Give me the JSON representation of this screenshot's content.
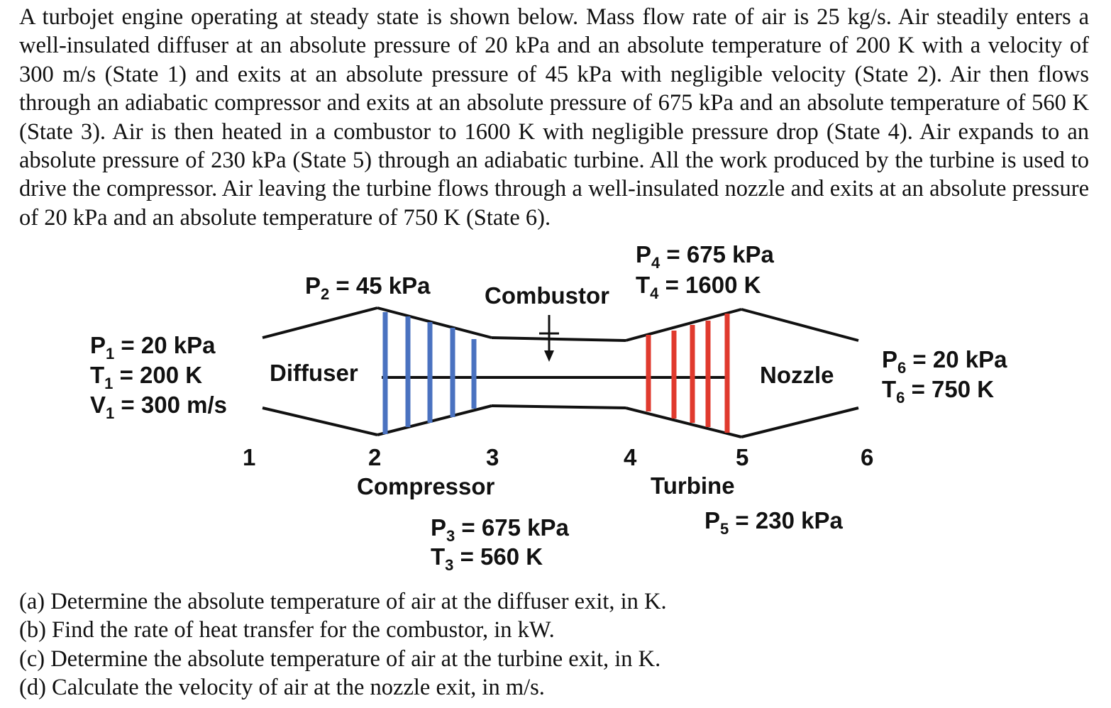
{
  "problem_statement": "A turbojet engine operating at steady state is shown below. Mass flow rate of air is 25 kg/s. Air steadily enters a well-insulated diffuser at an absolute pressure of 20 kPa and an absolute temperature of 200 K with a velocity of 300 m/s (State 1) and exits at an absolute pressure of 45 kPa with negligible velocity (State 2). Air then flows through an adiabatic compressor and exits at an absolute pressure of 675 kPa and an absolute temperature of 560 K (State 3). Air is then heated in a combustor to 1600 K with negligible pressure drop (State 4). Air expands to an absolute pressure of 230 kPa (State 5) through an adiabatic turbine. All the work produced by the turbine is used to drive the compressor. Air leaving the turbine flows through a well-insulated nozzle and exits at an absolute pressure of 20 kPa and an absolute temperature of 750 K (State 6).",
  "diagram": {
    "components": {
      "diffuser": "Diffuser",
      "compressor": "Compressor",
      "combustor": "Combustor",
      "turbine": "Turbine",
      "nozzle": "Nozzle"
    },
    "stations": [
      "1",
      "2",
      "3",
      "4",
      "5",
      "6"
    ],
    "state1": {
      "p_sym": "P",
      "p_sub": "1",
      "p_val": " = 20 kPa",
      "t_sym": "T",
      "t_sub": "1",
      "t_val": " = 200 K",
      "v_sym": "V",
      "v_sub": "1",
      "v_val": " = 300 m/s"
    },
    "state2": {
      "p_sym": "P",
      "p_sub": "2",
      "p_val": " = 45 kPa"
    },
    "state3": {
      "p_sym": "P",
      "p_sub": "3",
      "p_val": " = 675 kPa",
      "t_sym": "T",
      "t_sub": "3",
      "t_val": " = 560 K"
    },
    "state4": {
      "p_sym": "P",
      "p_sub": "4",
      "p_val": " = 675 kPa",
      "t_sym": "T",
      "t_sub": "4",
      "t_val": " = 1600 K"
    },
    "state5": {
      "p_sym": "P",
      "p_sub": "5",
      "p_val": " = 230 kPa"
    },
    "state6": {
      "p_sym": "P",
      "p_sub": "6",
      "p_val": " = 20 kPa",
      "t_sym": "T",
      "t_sub": "6",
      "t_val": " = 750 K"
    },
    "colors": {
      "compressor_blades": "#4a72c0",
      "turbine_blades": "#e03a2e",
      "outline": "#111111"
    }
  },
  "questions": [
    "(a) Determine the absolute temperature of air at the diffuser exit, in K.",
    "(b) Find the rate of heat transfer for the combustor, in kW.",
    "(c) Determine the absolute temperature of air at the turbine exit, in K.",
    "(d) Calculate the velocity of air at the nozzle exit, in m/s."
  ]
}
